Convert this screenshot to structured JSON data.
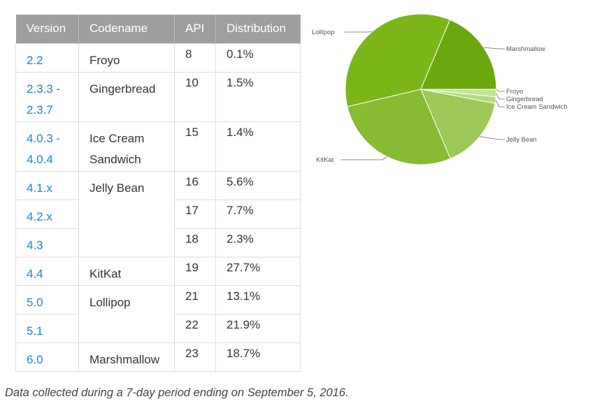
{
  "table": {
    "headers": [
      "Version",
      "Codename",
      "API",
      "Distribution"
    ],
    "rows": [
      {
        "version": [
          "2.2"
        ],
        "codename": [
          "Froyo"
        ],
        "api": "8",
        "dist": "0.1%"
      },
      {
        "version": [
          "2.3.3 -",
          "2.3.7"
        ],
        "codename": [
          "Gingerbread"
        ],
        "api": "10",
        "dist": "1.5%"
      },
      {
        "version": [
          "4.0.3 -",
          "4.0.4"
        ],
        "codename": [
          "Ice Cream",
          "Sandwich"
        ],
        "api": "15",
        "dist": "1.4%"
      },
      {
        "version": [
          "4.1.x"
        ],
        "codename": [
          "Jelly Bean"
        ],
        "api": "16",
        "dist": "5.6%"
      },
      {
        "version": [
          "4.2.x"
        ],
        "codename": null,
        "api": "17",
        "dist": "7.7%"
      },
      {
        "version": [
          "4.3"
        ],
        "codename": null,
        "api": "18",
        "dist": "2.3%"
      },
      {
        "version": [
          "4.4"
        ],
        "codename": [
          "KitKat"
        ],
        "api": "19",
        "dist": "27.7%"
      },
      {
        "version": [
          "5.0"
        ],
        "codename": [
          "Lollipop"
        ],
        "api": "21",
        "dist": "13.1%"
      },
      {
        "version": [
          "5.1"
        ],
        "codename": null,
        "api": "22",
        "dist": "21.9%"
      },
      {
        "version": [
          "6.0"
        ],
        "codename": [
          "Marshmallow"
        ],
        "api": "23",
        "dist": "18.7%"
      }
    ]
  },
  "caption": "Data collected during a 7-day period ending on September 5, 2016.",
  "chart_data": {
    "type": "pie",
    "title": "",
    "slices": [
      {
        "label": "Froyo",
        "value": 0.1,
        "color": "#d5ecb5"
      },
      {
        "label": "Gingerbread",
        "value": 1.5,
        "color": "#c3e29a"
      },
      {
        "label": "Ice Cream Sandwich",
        "value": 1.4,
        "color": "#b2d983"
      },
      {
        "label": "Jelly Bean",
        "value": 15.6,
        "color": "#9cc957"
      },
      {
        "label": "KitKat",
        "value": 27.7,
        "color": "#86bb32"
      },
      {
        "label": "Lollipop",
        "value": 35.0,
        "color": "#7cb519"
      },
      {
        "label": "Marshmallow",
        "value": 18.7,
        "color": "#6aa80d"
      }
    ],
    "legend": "callout-labels"
  }
}
